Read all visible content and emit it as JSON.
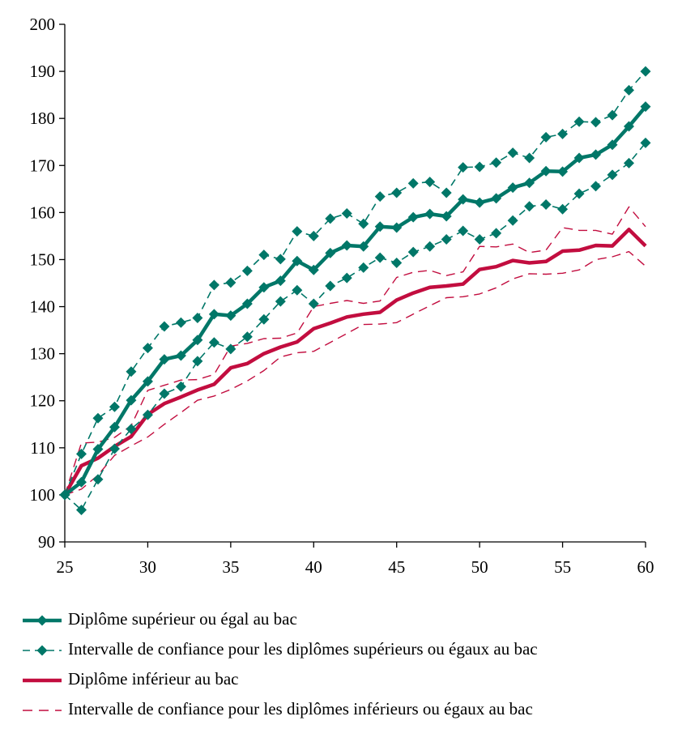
{
  "chart_data": {
    "type": "line",
    "title": "",
    "xlabel": "",
    "ylabel": "",
    "xlim": [
      25,
      60
    ],
    "ylim": [
      90,
      200
    ],
    "x_ticks": [
      25,
      30,
      35,
      40,
      45,
      50,
      55,
      60
    ],
    "y_ticks": [
      90,
      100,
      110,
      120,
      130,
      140,
      150,
      160,
      170,
      180,
      190,
      200
    ],
    "grid": false,
    "legend_position": "bottom",
    "x": [
      25,
      26,
      27,
      28,
      29,
      30,
      31,
      32,
      33,
      34,
      35,
      36,
      37,
      38,
      39,
      40,
      41,
      42,
      43,
      44,
      45,
      46,
      47,
      48,
      49,
      50,
      51,
      52,
      53,
      54,
      55,
      56,
      57,
      58,
      59,
      60
    ],
    "series": [
      {
        "name": "Diplôme supérieur ou égal au bac",
        "color": "#007768",
        "style": "solid-thick-diamond",
        "values": [
          100,
          102.7,
          109.7,
          114.4,
          120.1,
          124.1,
          128.8,
          129.6,
          132.9,
          138.4,
          138.1,
          140.6,
          144.1,
          145.5,
          149.7,
          147.8,
          151.4,
          153.0,
          152.8,
          157.0,
          156.8,
          159.0,
          159.7,
          159.2,
          162.8,
          162.1,
          163.0,
          165.3,
          166.3,
          168.8,
          168.7,
          171.6,
          172.3,
          174.4,
          178.3,
          182.5
        ]
      },
      {
        "name": "Intervalle de confiance pour les diplômes supérieurs ou égaux au bac",
        "color": "#007768",
        "style": "dashed-diamond",
        "values": [
          100,
          108.7,
          116.3,
          118.7,
          126.2,
          131.2,
          135.8,
          136.6,
          137.6,
          144.6,
          145.1,
          147.6,
          151.0,
          150.1,
          156.0,
          155.0,
          158.7,
          159.8,
          157.6,
          163.4,
          164.2,
          166.2,
          166.5,
          164.2,
          169.6,
          169.7,
          170.6,
          172.7,
          171.6,
          176.0,
          176.7,
          179.3,
          179.2,
          180.7,
          186.0,
          190.0
        ]
      },
      {
        "name": "",
        "color": "#007768",
        "style": "dashed-diamond",
        "values": [
          100,
          96.8,
          103.3,
          109.8,
          114.0,
          117.0,
          121.5,
          123.0,
          128.4,
          132.4,
          131.0,
          133.6,
          137.3,
          141.1,
          143.5,
          140.6,
          144.4,
          146.1,
          148.3,
          150.4,
          149.3,
          151.6,
          152.8,
          154.3,
          156.1,
          154.3,
          155.6,
          158.3,
          161.3,
          161.7,
          160.7,
          164.0,
          165.6,
          168.0,
          170.5,
          174.8
        ]
      },
      {
        "name": "Diplôme inférieur au bac",
        "color": "#c20d3f",
        "style": "solid-thick",
        "values": [
          100,
          106.2,
          107.8,
          110.3,
          112.4,
          117.1,
          119.4,
          120.8,
          122.3,
          123.5,
          127.0,
          127.9,
          130.0,
          131.4,
          132.5,
          135.3,
          136.5,
          137.8,
          138.4,
          138.8,
          141.4,
          142.9,
          144.1,
          144.4,
          144.8,
          147.9,
          148.5,
          149.8,
          149.3,
          149.6,
          151.8,
          152.0,
          153.0,
          152.9,
          156.4,
          152.9
        ]
      },
      {
        "name": "Intervalle de confiance pour les diplômes inférieurs ou égaux au bac",
        "color": "#c20d3f",
        "style": "dashed-thin",
        "values": [
          100,
          111.0,
          111.2,
          112.2,
          114.7,
          122.2,
          123.3,
          124.4,
          124.5,
          125.6,
          131.6,
          132.2,
          133.2,
          133.3,
          134.4,
          140.0,
          140.7,
          141.3,
          140.7,
          141.2,
          146.2,
          147.3,
          147.7,
          146.6,
          147.4,
          152.8,
          152.7,
          153.3,
          151.5,
          152.0,
          156.8,
          156.2,
          156.2,
          155.4,
          161.2,
          157.0
        ]
      },
      {
        "name": "",
        "color": "#c20d3f",
        "style": "dashed-thin",
        "values": [
          100,
          101.2,
          104.2,
          108.4,
          110.4,
          112.3,
          115.0,
          117.5,
          120.1,
          121.0,
          122.4,
          124.2,
          126.4,
          129.3,
          130.2,
          130.5,
          132.4,
          134.3,
          136.2,
          136.3,
          136.6,
          138.4,
          140.2,
          141.9,
          142.1,
          142.7,
          144.0,
          145.9,
          147.0,
          146.9,
          147.1,
          147.8,
          150.0,
          150.6,
          151.7,
          148.6
        ]
      }
    ]
  },
  "legend": {
    "items": [
      {
        "label": "Diplôme supérieur ou égal au bac",
        "style": "solid-thick-diamond",
        "color": "#007768"
      },
      {
        "label": "Intervalle de confiance pour les diplômes supérieurs ou égaux au bac",
        "style": "dashed-diamond",
        "color": "#007768"
      },
      {
        "label": "Diplôme inférieur au bac",
        "style": "solid-thick",
        "color": "#c20d3f"
      },
      {
        "label": "Intervalle de confiance pour les diplômes inférieurs ou égaux au bac",
        "style": "dashed-thin",
        "color": "#c20d3f"
      }
    ]
  }
}
